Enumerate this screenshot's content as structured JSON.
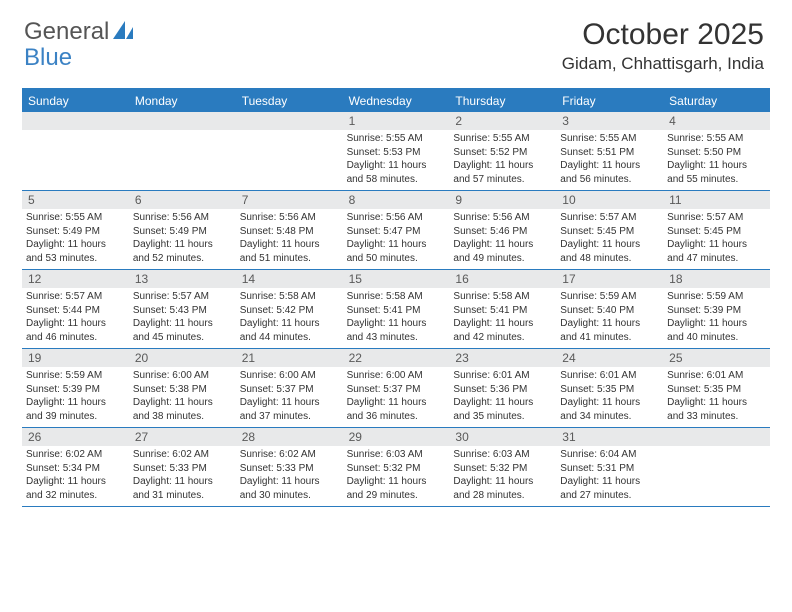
{
  "logo": {
    "text1": "General",
    "text2": "Blue"
  },
  "title": "October 2025",
  "location": "Gidam, Chhattisgarh, India",
  "colors": {
    "header_bar": "#2a7bbf",
    "daynum_bg": "#e8e9ea",
    "text": "#333333",
    "logo_gray": "#555555",
    "logo_blue": "#3b82c4"
  },
  "day_headers": [
    "Sunday",
    "Monday",
    "Tuesday",
    "Wednesday",
    "Thursday",
    "Friday",
    "Saturday"
  ],
  "weeks": [
    [
      {
        "n": "",
        "sr": "",
        "ss": "",
        "dl": ""
      },
      {
        "n": "",
        "sr": "",
        "ss": "",
        "dl": ""
      },
      {
        "n": "",
        "sr": "",
        "ss": "",
        "dl": ""
      },
      {
        "n": "1",
        "sr": "5:55 AM",
        "ss": "5:53 PM",
        "dl": "11 hours and 58 minutes."
      },
      {
        "n": "2",
        "sr": "5:55 AM",
        "ss": "5:52 PM",
        "dl": "11 hours and 57 minutes."
      },
      {
        "n": "3",
        "sr": "5:55 AM",
        "ss": "5:51 PM",
        "dl": "11 hours and 56 minutes."
      },
      {
        "n": "4",
        "sr": "5:55 AM",
        "ss": "5:50 PM",
        "dl": "11 hours and 55 minutes."
      }
    ],
    [
      {
        "n": "5",
        "sr": "5:55 AM",
        "ss": "5:49 PM",
        "dl": "11 hours and 53 minutes."
      },
      {
        "n": "6",
        "sr": "5:56 AM",
        "ss": "5:49 PM",
        "dl": "11 hours and 52 minutes."
      },
      {
        "n": "7",
        "sr": "5:56 AM",
        "ss": "5:48 PM",
        "dl": "11 hours and 51 minutes."
      },
      {
        "n": "8",
        "sr": "5:56 AM",
        "ss": "5:47 PM",
        "dl": "11 hours and 50 minutes."
      },
      {
        "n": "9",
        "sr": "5:56 AM",
        "ss": "5:46 PM",
        "dl": "11 hours and 49 minutes."
      },
      {
        "n": "10",
        "sr": "5:57 AM",
        "ss": "5:45 PM",
        "dl": "11 hours and 48 minutes."
      },
      {
        "n": "11",
        "sr": "5:57 AM",
        "ss": "5:45 PM",
        "dl": "11 hours and 47 minutes."
      }
    ],
    [
      {
        "n": "12",
        "sr": "5:57 AM",
        "ss": "5:44 PM",
        "dl": "11 hours and 46 minutes."
      },
      {
        "n": "13",
        "sr": "5:57 AM",
        "ss": "5:43 PM",
        "dl": "11 hours and 45 minutes."
      },
      {
        "n": "14",
        "sr": "5:58 AM",
        "ss": "5:42 PM",
        "dl": "11 hours and 44 minutes."
      },
      {
        "n": "15",
        "sr": "5:58 AM",
        "ss": "5:41 PM",
        "dl": "11 hours and 43 minutes."
      },
      {
        "n": "16",
        "sr": "5:58 AM",
        "ss": "5:41 PM",
        "dl": "11 hours and 42 minutes."
      },
      {
        "n": "17",
        "sr": "5:59 AM",
        "ss": "5:40 PM",
        "dl": "11 hours and 41 minutes."
      },
      {
        "n": "18",
        "sr": "5:59 AM",
        "ss": "5:39 PM",
        "dl": "11 hours and 40 minutes."
      }
    ],
    [
      {
        "n": "19",
        "sr": "5:59 AM",
        "ss": "5:39 PM",
        "dl": "11 hours and 39 minutes."
      },
      {
        "n": "20",
        "sr": "6:00 AM",
        "ss": "5:38 PM",
        "dl": "11 hours and 38 minutes."
      },
      {
        "n": "21",
        "sr": "6:00 AM",
        "ss": "5:37 PM",
        "dl": "11 hours and 37 minutes."
      },
      {
        "n": "22",
        "sr": "6:00 AM",
        "ss": "5:37 PM",
        "dl": "11 hours and 36 minutes."
      },
      {
        "n": "23",
        "sr": "6:01 AM",
        "ss": "5:36 PM",
        "dl": "11 hours and 35 minutes."
      },
      {
        "n": "24",
        "sr": "6:01 AM",
        "ss": "5:35 PM",
        "dl": "11 hours and 34 minutes."
      },
      {
        "n": "25",
        "sr": "6:01 AM",
        "ss": "5:35 PM",
        "dl": "11 hours and 33 minutes."
      }
    ],
    [
      {
        "n": "26",
        "sr": "6:02 AM",
        "ss": "5:34 PM",
        "dl": "11 hours and 32 minutes."
      },
      {
        "n": "27",
        "sr": "6:02 AM",
        "ss": "5:33 PM",
        "dl": "11 hours and 31 minutes."
      },
      {
        "n": "28",
        "sr": "6:02 AM",
        "ss": "5:33 PM",
        "dl": "11 hours and 30 minutes."
      },
      {
        "n": "29",
        "sr": "6:03 AM",
        "ss": "5:32 PM",
        "dl": "11 hours and 29 minutes."
      },
      {
        "n": "30",
        "sr": "6:03 AM",
        "ss": "5:32 PM",
        "dl": "11 hours and 28 minutes."
      },
      {
        "n": "31",
        "sr": "6:04 AM",
        "ss": "5:31 PM",
        "dl": "11 hours and 27 minutes."
      },
      {
        "n": "",
        "sr": "",
        "ss": "",
        "dl": ""
      }
    ]
  ],
  "labels": {
    "sunrise": "Sunrise: ",
    "sunset": "Sunset: ",
    "daylight": "Daylight: "
  }
}
